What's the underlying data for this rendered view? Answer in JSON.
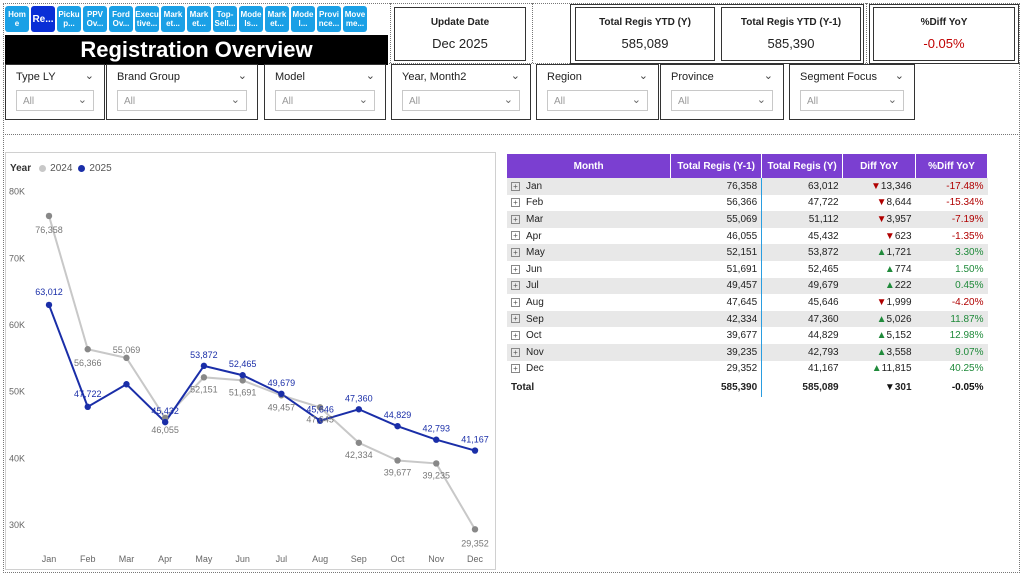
{
  "nav": [
    {
      "label": "Hom e"
    },
    {
      "label": "Re..."
    },
    {
      "label": "Picku p..."
    },
    {
      "label": "PPV Ov..."
    },
    {
      "label": "Ford Ov..."
    },
    {
      "label": "Execu tive..."
    },
    {
      "label": "Mark et..."
    },
    {
      "label": "Mark et..."
    },
    {
      "label": "Top- Sell..."
    },
    {
      "label": "Mode ls..."
    },
    {
      "label": "Mark et..."
    },
    {
      "label": "Mode l..."
    },
    {
      "label": "Provi nce..."
    },
    {
      "label": "Move me..."
    }
  ],
  "page_title": "Registration Overview",
  "cards": {
    "update": {
      "label": "Update Date",
      "value": "Dec 2025"
    },
    "ytd": {
      "label": "Total Regis YTD (Y)",
      "value": "585,089"
    },
    "ytd_prev": {
      "label": "Total Regis YTD (Y-1)",
      "value": "585,390"
    },
    "diff": {
      "label": "%Diff YoY",
      "value": "-0.05%"
    }
  },
  "slicers": [
    {
      "title": "Type LY",
      "value": "All"
    },
    {
      "title": "Brand Group",
      "value": "All"
    },
    {
      "title": "Model",
      "value": "All"
    },
    {
      "title": "Year, Month2",
      "value": "All"
    },
    {
      "title": "Region",
      "value": "All"
    },
    {
      "title": "Province",
      "value": "All"
    },
    {
      "title": "Segment Focus",
      "value": "All"
    }
  ],
  "colors": {
    "series_2024": "#c8c8c8",
    "series_2025": "#1a2ea8",
    "header": "#7b3fd1",
    "pos": "#1f8a3a",
    "neg": "#b00000"
  },
  "legend": {
    "title": "Year",
    "items": [
      "2024",
      "2025"
    ]
  },
  "chart_data": {
    "type": "line",
    "categories": [
      "Jan",
      "Feb",
      "Mar",
      "Apr",
      "May",
      "Jun",
      "Jul",
      "Aug",
      "Sep",
      "Oct",
      "Nov",
      "Dec"
    ],
    "series": [
      {
        "name": "2024",
        "values": [
          76358,
          56366,
          55069,
          46055,
          52151,
          51691,
          49457,
          47645,
          42334,
          39677,
          39235,
          29352
        ]
      },
      {
        "name": "2025",
        "values": [
          63012,
          47722,
          51112,
          45432,
          53872,
          52465,
          49679,
          45646,
          47360,
          44829,
          42793,
          41167
        ]
      }
    ],
    "yticks": [
      "30K",
      "40K",
      "50K",
      "60K",
      "70K",
      "80K"
    ],
    "ylim": [
      27000,
      81000
    ],
    "point_labels_2024": [
      "76,358",
      "56,366",
      "55,069",
      "46,055",
      "52,151",
      "51,691",
      "49,457",
      "47,645",
      "42,334",
      "39,677",
      "39,235",
      "29,352"
    ],
    "point_labels_2025": [
      "63,012",
      "47,722",
      "",
      "45,432",
      "53,872",
      "52,465",
      "49,679",
      "45,646",
      "47,360",
      "44,829",
      "42,793",
      "41,167"
    ]
  },
  "table": {
    "headers": [
      "Month",
      "Total Regis (Y-1)",
      "Total Regis (Y)",
      "Diff YoY",
      "%Diff YoY"
    ],
    "rows": [
      {
        "month": "Jan",
        "prev": "76,358",
        "cur": "63,012",
        "dir": "down",
        "diff": "13,346",
        "pct": "-17.48%"
      },
      {
        "month": "Feb",
        "prev": "56,366",
        "cur": "47,722",
        "dir": "down",
        "diff": "8,644",
        "pct": "-15.34%"
      },
      {
        "month": "Mar",
        "prev": "55,069",
        "cur": "51,112",
        "dir": "down",
        "diff": "3,957",
        "pct": "-7.19%"
      },
      {
        "month": "Apr",
        "prev": "46,055",
        "cur": "45,432",
        "dir": "down",
        "diff": "623",
        "pct": "-1.35%"
      },
      {
        "month": "May",
        "prev": "52,151",
        "cur": "53,872",
        "dir": "up",
        "diff": "1,721",
        "pct": "3.30%"
      },
      {
        "month": "Jun",
        "prev": "51,691",
        "cur": "52,465",
        "dir": "up",
        "diff": "774",
        "pct": "1.50%"
      },
      {
        "month": "Jul",
        "prev": "49,457",
        "cur": "49,679",
        "dir": "up",
        "diff": "222",
        "pct": "0.45%"
      },
      {
        "month": "Aug",
        "prev": "47,645",
        "cur": "45,646",
        "dir": "down",
        "diff": "1,999",
        "pct": "-4.20%"
      },
      {
        "month": "Sep",
        "prev": "42,334",
        "cur": "47,360",
        "dir": "up",
        "diff": "5,026",
        "pct": "11.87%"
      },
      {
        "month": "Oct",
        "prev": "39,677",
        "cur": "44,829",
        "dir": "up",
        "diff": "5,152",
        "pct": "12.98%"
      },
      {
        "month": "Nov",
        "prev": "39,235",
        "cur": "42,793",
        "dir": "up",
        "diff": "3,558",
        "pct": "9.07%"
      },
      {
        "month": "Dec",
        "prev": "29,352",
        "cur": "41,167",
        "dir": "up",
        "diff": "11,815",
        "pct": "40.25%"
      }
    ],
    "total": {
      "month": "Total",
      "prev": "585,390",
      "cur": "585,089",
      "dir": "down",
      "diff": "301",
      "pct": "-0.05%"
    }
  }
}
